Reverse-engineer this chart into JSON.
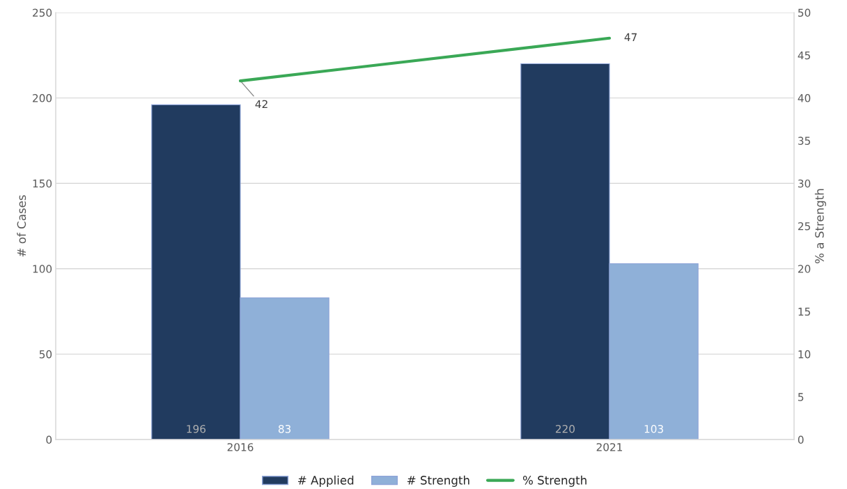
{
  "chart_data": {
    "type": "bar",
    "categories": [
      "2016",
      "2021"
    ],
    "ylabel": "# of Cases",
    "y2label": "% a Strength",
    "series": [
      {
        "name": "# Applied",
        "type": "bar",
        "color": "#213b5f",
        "values": [
          196,
          220
        ]
      },
      {
        "name": "# Strength",
        "type": "bar",
        "color": "#8fb0d8",
        "values": [
          83,
          103
        ]
      },
      {
        "name": "% Strength",
        "type": "line",
        "axis": "y2",
        "color": "#3aa856",
        "values": [
          42,
          47
        ]
      }
    ],
    "ylim": [
      0,
      250
    ],
    "yticks": [
      0,
      50,
      100,
      150,
      200,
      250
    ],
    "y2lim": [
      0,
      50
    ],
    "y2ticks": [
      0,
      5,
      10,
      15,
      20,
      25,
      30,
      35,
      40,
      45,
      50
    ],
    "data_labels": true,
    "grid": "y",
    "legend": "bottom",
    "marker": "none"
  }
}
